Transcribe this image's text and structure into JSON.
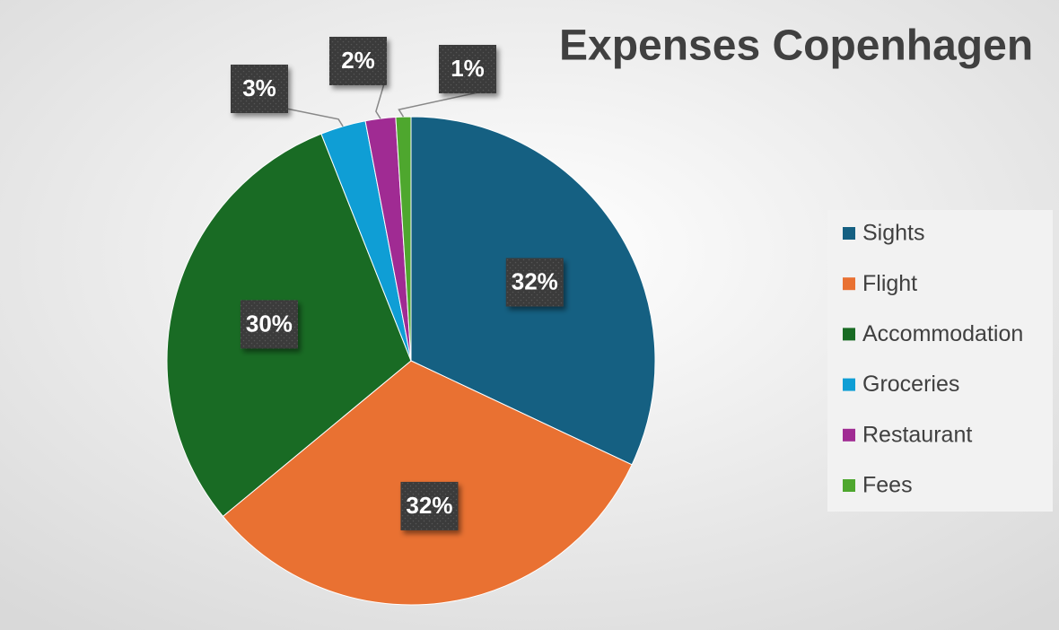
{
  "chart_data": {
    "type": "pie",
    "title": "Expenses Copenhagen",
    "categories": [
      "Sights",
      "Flight",
      "Accommodation",
      "Groceries",
      "Restaurant",
      "Fees"
    ],
    "values": [
      32,
      32,
      30,
      3,
      2,
      1
    ],
    "value_labels": [
      "32%",
      "32%",
      "30%",
      "3%",
      "2%",
      "1%"
    ],
    "colors": [
      "#156082",
      "#e97132",
      "#196b24",
      "#0f9ed5",
      "#a02b93",
      "#4ea72e"
    ],
    "legend": "right"
  }
}
